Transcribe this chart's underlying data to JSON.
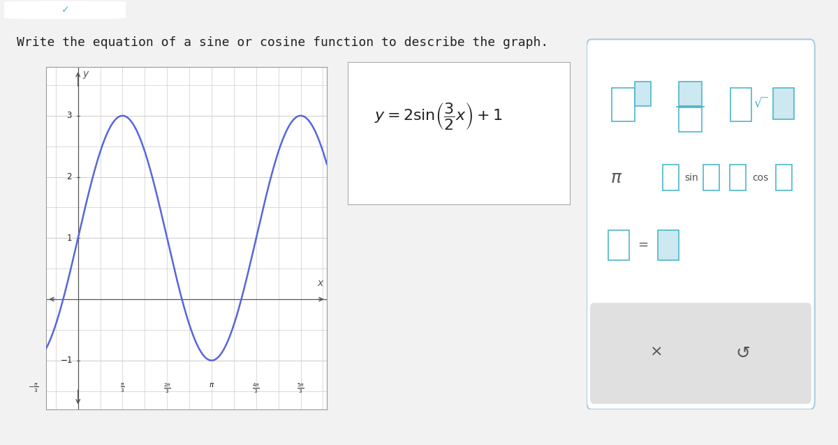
{
  "title": "Write the equation of a sine or cosine function to describe the graph.",
  "title_fontsize": 13,
  "title_color": "#222222",
  "bg_color": "#f2f2f2",
  "panel_bg": "#ffffff",
  "curve_color": "#5566dd",
  "curve_linewidth": 1.8,
  "amplitude": 2,
  "B": 1.5,
  "vertical_shift": 1,
  "x_tick_labels": [
    "-\\frac{\\pi}{3}",
    "\\frac{\\pi}{3}",
    "\\frac{2\\pi}{3}",
    "\\pi",
    "\\frac{4\\pi}{3}",
    "\\frac{5\\pi}{3}"
  ],
  "x_tick_values_num": [
    -1.0472,
    1.0472,
    2.0944,
    3.14159,
    4.18879,
    5.23599
  ],
  "y_ticks": [
    -1,
    1,
    2,
    3
  ],
  "xlim": [
    -0.75,
    5.85
  ],
  "ylim": [
    -1.8,
    3.8
  ],
  "grid_color": "#cccccc",
  "axis_color": "#555555",
  "palette_teal": "#4db6c8",
  "top_bar_color": "#4db6c8"
}
